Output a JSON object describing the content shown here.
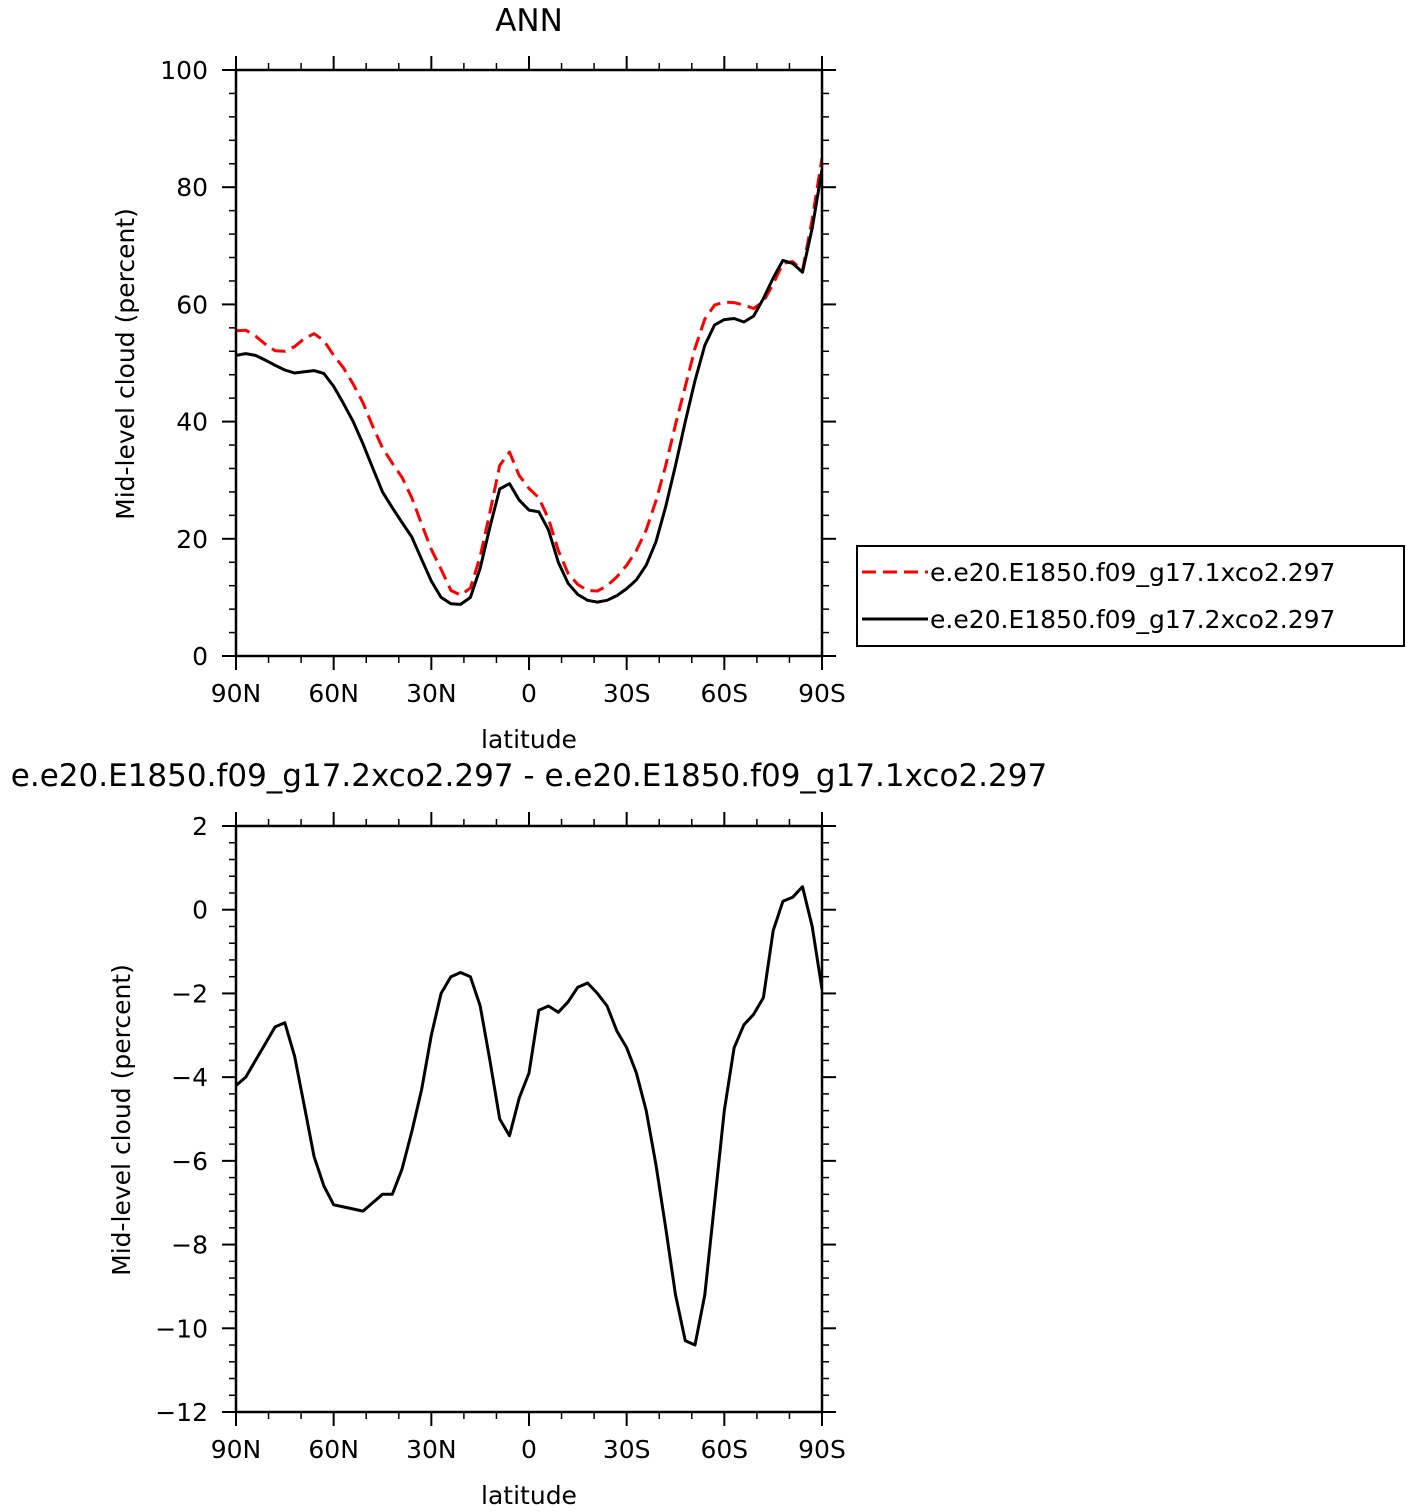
{
  "chart_data": [
    {
      "type": "line",
      "title": "ANN",
      "xlabel": "latitude",
      "ylabel": "Mid-level cloud (percent)",
      "xlim": [
        90,
        -90
      ],
      "ylim": [
        0,
        100
      ],
      "x_ticks": [
        90,
        60,
        30,
        0,
        -30,
        -60,
        -90
      ],
      "x_tick_labels": [
        "90N",
        "60N",
        "30N",
        "0",
        "30S",
        "60S",
        "90S"
      ],
      "y_ticks": [
        0,
        20,
        40,
        60,
        80,
        100
      ],
      "y_tick_labels": [
        "0",
        "20",
        "40",
        "60",
        "80",
        "100"
      ],
      "legend_position": "right",
      "x": [
        90,
        87,
        84,
        81,
        78,
        75,
        72,
        69,
        66,
        63,
        60,
        57,
        54,
        51,
        48,
        45,
        42,
        39,
        36,
        33,
        30,
        27,
        24,
        21,
        18,
        15,
        12,
        9,
        6,
        3,
        0,
        -3,
        -6,
        -9,
        -12,
        -15,
        -18,
        -21,
        -24,
        -27,
        -30,
        -33,
        -36,
        -39,
        -42,
        -45,
        -48,
        -51,
        -54,
        -57,
        -60,
        -63,
        -66,
        -69,
        -72,
        -75,
        -78,
        -81,
        -84,
        -87,
        -90
      ],
      "series": [
        {
          "name": "e.e20.E1850.f09_g17.1xco2.297",
          "color": "#ff0000",
          "dash": true,
          "values": [
            55.5,
            55.6,
            54.6,
            53.2,
            52.1,
            52.0,
            52.8,
            54.2,
            55.0,
            53.8,
            51.3,
            49.2,
            46.4,
            43.2,
            39.2,
            35.5,
            32.9,
            30.5,
            27.0,
            22.5,
            18.2,
            14.8,
            11.2,
            10.4,
            11.6,
            17.0,
            24.5,
            32.5,
            34.8,
            30.8,
            28.6,
            27.0,
            23.4,
            18.0,
            14.1,
            12.2,
            11.2,
            11.1,
            12.0,
            13.5,
            15.5,
            18.0,
            21.5,
            26.5,
            32.5,
            39.5,
            46.0,
            52.5,
            57.5,
            59.9,
            60.4,
            60.3,
            59.9,
            59.3,
            60.5,
            63.5,
            67.0,
            67.3,
            65.8,
            74.5,
            85.0
          ]
        },
        {
          "name": "e.e20.E1850.f09_g17.2xco2.297",
          "color": "#000000",
          "dash": false,
          "values": [
            51.3,
            51.6,
            51.3,
            50.5,
            49.6,
            48.8,
            48.3,
            48.5,
            48.7,
            48.2,
            46.0,
            43.1,
            40.0,
            36.2,
            32.1,
            28.0,
            25.3,
            22.8,
            20.3,
            16.5,
            12.8,
            10.0,
            8.9,
            8.8,
            10.0,
            15.0,
            22.0,
            28.5,
            29.4,
            26.6,
            24.9,
            24.6,
            21.5,
            16.0,
            12.4,
            10.5,
            9.5,
            9.2,
            9.5,
            10.3,
            11.5,
            13.0,
            15.5,
            19.5,
            25.5,
            32.5,
            40.0,
            47.0,
            53.0,
            56.5,
            57.4,
            57.6,
            57.0,
            58.0,
            61.0,
            64.5,
            67.5,
            67.0,
            65.5,
            73.0,
            83.0
          ]
        }
      ]
    },
    {
      "type": "line",
      "title": "e.e20.E1850.f09_g17.2xco2.297 - e.e20.E1850.f09_g17.1xco2.297",
      "xlabel": "latitude",
      "ylabel": "Mid-level cloud (percent)",
      "xlim": [
        90,
        -90
      ],
      "ylim": [
        -12,
        2
      ],
      "x_ticks": [
        90,
        60,
        30,
        0,
        -30,
        -60,
        -90
      ],
      "x_tick_labels": [
        "90N",
        "60N",
        "30N",
        "0",
        "30S",
        "60S",
        "90S"
      ],
      "y_ticks": [
        -12,
        -10,
        -8,
        -6,
        -4,
        -2,
        0,
        2
      ],
      "y_tick_labels": [
        "−12",
        "−10",
        "−8",
        "−6",
        "−4",
        "−2",
        "0",
        "2"
      ],
      "x": [
        90,
        87,
        84,
        81,
        78,
        75,
        72,
        69,
        66,
        63,
        60,
        57,
        54,
        51,
        48,
        45,
        42,
        39,
        36,
        33,
        30,
        27,
        24,
        21,
        18,
        15,
        12,
        9,
        6,
        3,
        0,
        -3,
        -6,
        -9,
        -12,
        -15,
        -18,
        -21,
        -24,
        -27,
        -30,
        -33,
        -36,
        -39,
        -42,
        -45,
        -48,
        -51,
        -54,
        -57,
        -60,
        -63,
        -66,
        -69,
        -72,
        -75,
        -78,
        -81,
        -84,
        -87,
        -90
      ],
      "series": [
        {
          "color": "#000000",
          "values": [
            -4.2,
            -4.0,
            -3.6,
            -3.2,
            -2.8,
            -2.7,
            -3.5,
            -4.7,
            -5.9,
            -6.6,
            -7.05,
            -7.1,
            -7.15,
            -7.2,
            -7.0,
            -6.8,
            -6.8,
            -6.2,
            -5.3,
            -4.3,
            -3.0,
            -2.0,
            -1.6,
            -1.5,
            -1.6,
            -2.3,
            -3.6,
            -5.0,
            -5.4,
            -4.5,
            -3.9,
            -2.4,
            -2.3,
            -2.45,
            -2.2,
            -1.85,
            -1.75,
            -2.0,
            -2.3,
            -2.9,
            -3.3,
            -3.9,
            -4.8,
            -6.1,
            -7.6,
            -9.2,
            -10.3,
            -10.4,
            -9.2,
            -7.0,
            -4.8,
            -3.3,
            -2.75,
            -2.5,
            -2.1,
            -0.5,
            0.2,
            0.3,
            0.55,
            -0.4,
            -1.9
          ]
        }
      ]
    }
  ]
}
